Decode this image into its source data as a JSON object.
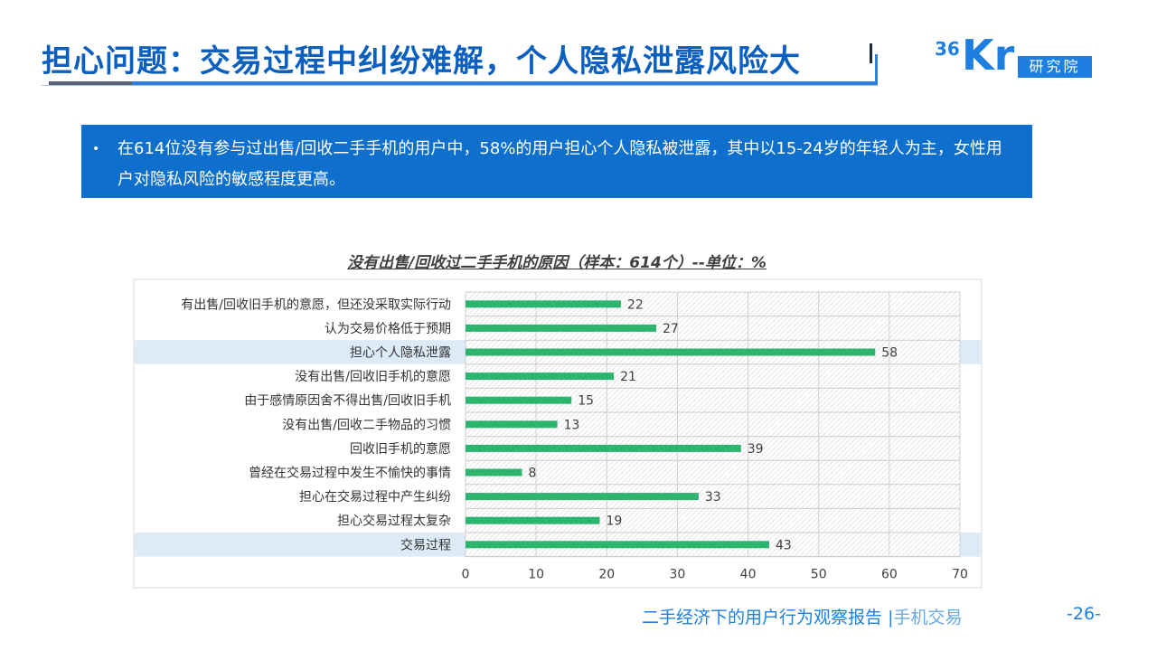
{
  "header": {
    "title": "担心问题：交易过程中纠纷难解，个人隐私泄露风险大",
    "logo_num": "36",
    "logo_letters": "Kr",
    "logo_label": "研究院"
  },
  "summary": {
    "bullet": "•",
    "text": "在614位没有参与过出售/回收二手手机的用户中，58%的用户担心个人隐私被泄露，其中以15-24岁的年轻人为主，女性用户对隐私风险的敏感程度更高。"
  },
  "chart_data": {
    "type": "bar",
    "orientation": "horizontal",
    "title": "没有出售/回收过二手手机的原因（样本：614个）--单位：%",
    "categories": [
      "有出售/回收旧手机的意愿，但还没采取实际行动",
      "认为交易价格低于预期",
      "担心个人隐私泄露",
      "没有出售/回收旧手机的意愿",
      "由于感情原因舍不得出售/回收旧手机",
      "没有出售/回收二手物品的习惯",
      "回收旧手机的意愿",
      "曾经在交易过程中发生不愉快的事情",
      "担心在交易过程中产生纠纷",
      "担心交易过程太复杂",
      "交易过程"
    ],
    "values": [
      22,
      27,
      58,
      21,
      15,
      13,
      39,
      8,
      33,
      19,
      43
    ],
    "highlighted": [
      false,
      false,
      true,
      false,
      false,
      false,
      false,
      false,
      false,
      false,
      true
    ],
    "xlim": [
      0,
      70
    ],
    "xticks": [
      0,
      10,
      20,
      30,
      40,
      50,
      60,
      70
    ],
    "grid": true,
    "bar_color": "#2db56f",
    "highlight_color": "#dcebf7"
  },
  "footer": {
    "report": "二手经济下的用户行为观察报告",
    "separator": "|",
    "section": "手机交易",
    "page": "-26-"
  }
}
